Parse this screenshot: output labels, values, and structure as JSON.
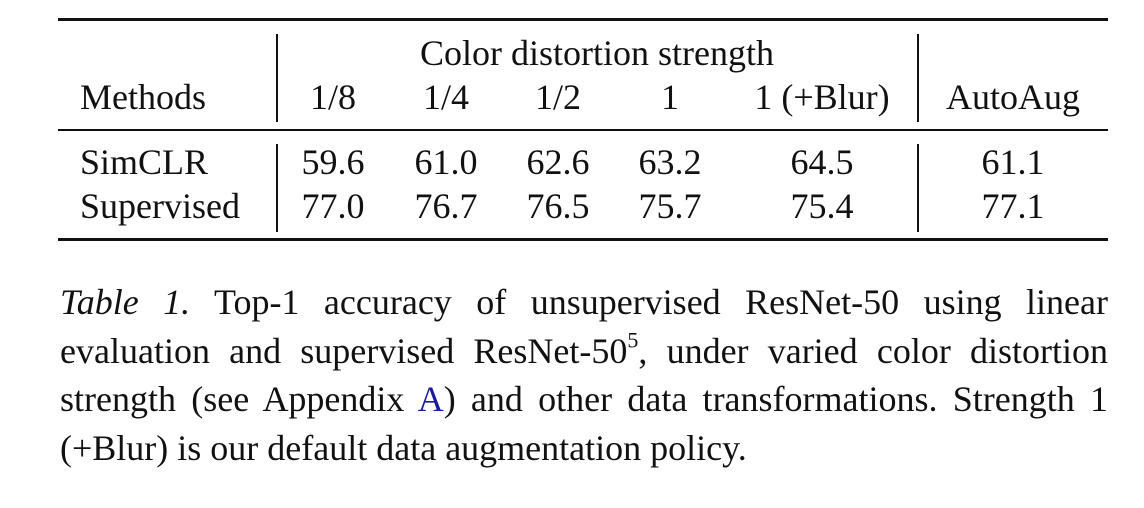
{
  "table": {
    "group_header": "Color distortion strength",
    "columns": [
      "Methods",
      "1/8",
      "1/4",
      "1/2",
      "1",
      "1 (+Blur)",
      "AutoAug"
    ],
    "rows": [
      [
        "SimCLR",
        "59.6",
        "61.0",
        "62.6",
        "63.2",
        "64.5",
        "61.1"
      ],
      [
        "Supervised",
        "77.0",
        "76.7",
        "76.5",
        "75.7",
        "75.4",
        "77.1"
      ]
    ]
  },
  "caption": {
    "label": "Table 1.",
    "text_1": "Top-1 accuracy of unsupervised ResNet-50 using linear evaluation and supervised ResNet-50",
    "footnote": "5",
    "text_2": ", under varied color distortion strength (see Appendix ",
    "link": "A",
    "text_3": ") and other data transformations. Strength 1 (+Blur) is our default data augmentation policy."
  }
}
